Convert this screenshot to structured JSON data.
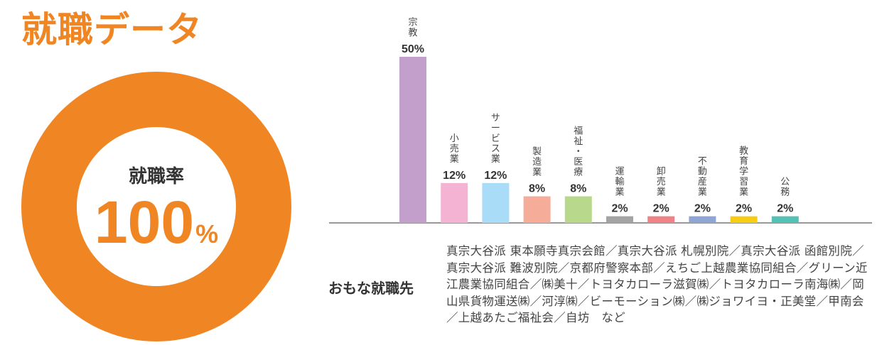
{
  "title": "就職データ",
  "employment_rate": {
    "label": "就職率",
    "value": 100,
    "value_text": "100",
    "unit": "%"
  },
  "colors": {
    "accent": "#f08524",
    "axis": "#999999"
  },
  "chart_data": {
    "type": "bar",
    "categories": [
      "宗教",
      "小売業",
      "サービス業",
      "製造業",
      "福祉・医療",
      "運輸業",
      "卸売業",
      "不動産業",
      "教育学習業",
      "公務"
    ],
    "values": [
      50,
      12,
      12,
      8,
      8,
      2,
      2,
      2,
      2,
      2
    ],
    "value_labels": [
      "50%",
      "12%",
      "12%",
      "8%",
      "8%",
      "2%",
      "2%",
      "2%",
      "2%",
      "2%"
    ],
    "colors": [
      "#c39fcb",
      "#f4b3d3",
      "#a9dcf6",
      "#f5ac98",
      "#b8d98b",
      "#a3a3a3",
      "#ef8287",
      "#8fa5d3",
      "#f7cc14",
      "#55c1b6"
    ],
    "title": "",
    "xlabel": "",
    "ylabel": "",
    "ylim": [
      0,
      50
    ],
    "grid": false,
    "legend": "none"
  },
  "companies": {
    "label": "おもな就職先",
    "text": "真宗大谷派 東本願寺真宗会館／真宗大谷派 札幌別院／真宗大谷派 函館別院／真宗大谷派 難波別院／京都府警察本部／えちご上越農業協同組合／グリーン近江農業協同組合／㈱美十／トヨタカローラ滋賀㈱／トヨタカローラ南海㈱／岡山県貨物運送㈱／河淳㈱／ビーモーション㈱／㈱ジョワイヨ・正美堂／甲南会／上越あたご福祉会／自坊　など"
  }
}
